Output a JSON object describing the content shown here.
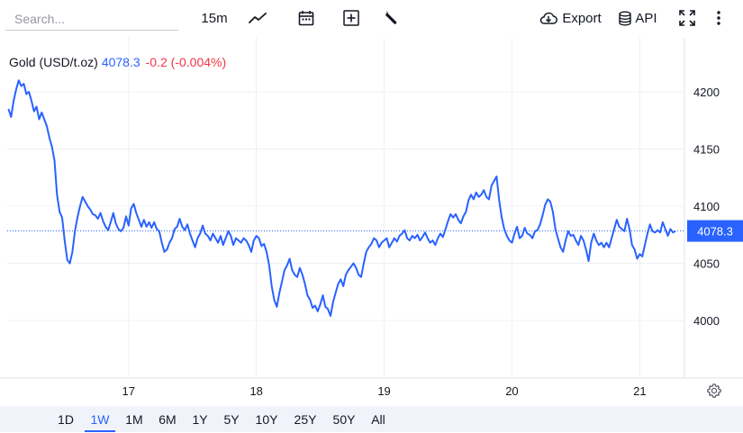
{
  "toolbar": {
    "search_placeholder": "Search...",
    "interval": "15m",
    "export_label": "Export",
    "api_label": "API"
  },
  "legend": {
    "symbol": "Gold (USD/t.oz)",
    "price": "4078.3",
    "change": "-0.2 (-0.004%)"
  },
  "price_label": "4078.3",
  "colors": {
    "line": "#2962ff",
    "down": "#f23645",
    "grid": "#e0e3eb",
    "range_bar": "#f0f3fa"
  },
  "ranges": [
    "1D",
    "1W",
    "1M",
    "6M",
    "1Y",
    "5Y",
    "10Y",
    "25Y",
    "50Y",
    "All"
  ],
  "active_range": "1W",
  "chart_data": {
    "type": "line",
    "series_name": "Gold (USD/t.oz)",
    "current_value": 4078.3,
    "y_ticks": [
      4000,
      4050,
      4100,
      4150,
      4200
    ],
    "y_range": [
      3950,
      4240
    ],
    "x_ticks": [
      {
        "label": "17",
        "x": 17
      },
      {
        "label": "18",
        "x": 18
      },
      {
        "label": "19",
        "x": 19
      },
      {
        "label": "20",
        "x": 20
      },
      {
        "label": "21",
        "x": 21
      }
    ],
    "x_range": [
      16.05,
      21.35
    ],
    "points": [
      [
        16.06,
        4185
      ],
      [
        16.08,
        4178
      ],
      [
        16.1,
        4192
      ],
      [
        16.12,
        4202
      ],
      [
        16.14,
        4210
      ],
      [
        16.16,
        4205
      ],
      [
        16.18,
        4207
      ],
      [
        16.2,
        4198
      ],
      [
        16.22,
        4200
      ],
      [
        16.24,
        4192
      ],
      [
        16.26,
        4183
      ],
      [
        16.28,
        4187
      ],
      [
        16.3,
        4176
      ],
      [
        16.32,
        4182
      ],
      [
        16.34,
        4176
      ],
      [
        16.36,
        4170
      ],
      [
        16.38,
        4160
      ],
      [
        16.4,
        4152
      ],
      [
        16.42,
        4140
      ],
      [
        16.44,
        4110
      ],
      [
        16.46,
        4095
      ],
      [
        16.48,
        4090
      ],
      [
        16.5,
        4070
      ],
      [
        16.52,
        4053
      ],
      [
        16.54,
        4050
      ],
      [
        16.56,
        4060
      ],
      [
        16.58,
        4078
      ],
      [
        16.6,
        4090
      ],
      [
        16.62,
        4100
      ],
      [
        16.64,
        4108
      ],
      [
        16.66,
        4104
      ],
      [
        16.68,
        4100
      ],
      [
        16.7,
        4097
      ],
      [
        16.72,
        4093
      ],
      [
        16.74,
        4092
      ],
      [
        16.76,
        4089
      ],
      [
        16.78,
        4094
      ],
      [
        16.8,
        4087
      ],
      [
        16.82,
        4082
      ],
      [
        16.84,
        4079
      ],
      [
        16.86,
        4086
      ],
      [
        16.88,
        4094
      ],
      [
        16.9,
        4085
      ],
      [
        16.92,
        4080
      ],
      [
        16.94,
        4078
      ],
      [
        16.96,
        4081
      ],
      [
        16.98,
        4091
      ],
      [
        17.0,
        4083
      ],
      [
        17.02,
        4098
      ],
      [
        17.04,
        4102
      ],
      [
        17.06,
        4094
      ],
      [
        17.08,
        4088
      ],
      [
        17.1,
        4082
      ],
      [
        17.12,
        4088
      ],
      [
        17.14,
        4082
      ],
      [
        17.16,
        4086
      ],
      [
        17.18,
        4081
      ],
      [
        17.2,
        4086
      ],
      [
        17.22,
        4080
      ],
      [
        17.24,
        4078
      ],
      [
        17.26,
        4068
      ],
      [
        17.28,
        4060
      ],
      [
        17.3,
        4062
      ],
      [
        17.32,
        4068
      ],
      [
        17.34,
        4072
      ],
      [
        17.36,
        4080
      ],
      [
        17.38,
        4082
      ],
      [
        17.4,
        4089
      ],
      [
        17.42,
        4082
      ],
      [
        17.44,
        4079
      ],
      [
        17.46,
        4084
      ],
      [
        17.48,
        4076
      ],
      [
        17.5,
        4070
      ],
      [
        17.52,
        4064
      ],
      [
        17.54,
        4072
      ],
      [
        17.56,
        4076
      ],
      [
        17.58,
        4083
      ],
      [
        17.6,
        4076
      ],
      [
        17.62,
        4074
      ],
      [
        17.64,
        4070
      ],
      [
        17.66,
        4076
      ],
      [
        17.68,
        4072
      ],
      [
        17.7,
        4068
      ],
      [
        17.72,
        4074
      ],
      [
        17.74,
        4066
      ],
      [
        17.76,
        4072
      ],
      [
        17.78,
        4078
      ],
      [
        17.8,
        4074
      ],
      [
        17.82,
        4066
      ],
      [
        17.84,
        4072
      ],
      [
        17.86,
        4070
      ],
      [
        17.88,
        4068
      ],
      [
        17.9,
        4072
      ],
      [
        17.92,
        4070
      ],
      [
        17.94,
        4066
      ],
      [
        17.96,
        4060
      ],
      [
        17.98,
        4070
      ],
      [
        18.0,
        4074
      ],
      [
        18.02,
        4072
      ],
      [
        18.04,
        4065
      ],
      [
        18.06,
        4067
      ],
      [
        18.08,
        4060
      ],
      [
        18.1,
        4048
      ],
      [
        18.12,
        4030
      ],
      [
        18.14,
        4018
      ],
      [
        18.16,
        4012
      ],
      [
        18.18,
        4024
      ],
      [
        18.2,
        4034
      ],
      [
        18.22,
        4044
      ],
      [
        18.24,
        4048
      ],
      [
        18.26,
        4054
      ],
      [
        18.28,
        4044
      ],
      [
        18.3,
        4040
      ],
      [
        18.32,
        4038
      ],
      [
        18.34,
        4046
      ],
      [
        18.36,
        4040
      ],
      [
        18.38,
        4032
      ],
      [
        18.4,
        4022
      ],
      [
        18.42,
        4018
      ],
      [
        18.44,
        4011
      ],
      [
        18.46,
        4013
      ],
      [
        18.48,
        4008
      ],
      [
        18.5,
        4014
      ],
      [
        18.52,
        4022
      ],
      [
        18.54,
        4012
      ],
      [
        18.56,
        4010
      ],
      [
        18.58,
        4004
      ],
      [
        18.6,
        4016
      ],
      [
        18.62,
        4024
      ],
      [
        18.64,
        4032
      ],
      [
        18.66,
        4036
      ],
      [
        18.68,
        4030
      ],
      [
        18.7,
        4040
      ],
      [
        18.72,
        4044
      ],
      [
        18.74,
        4047
      ],
      [
        18.76,
        4050
      ],
      [
        18.78,
        4046
      ],
      [
        18.8,
        4040
      ],
      [
        18.82,
        4038
      ],
      [
        18.84,
        4050
      ],
      [
        18.86,
        4060
      ],
      [
        18.88,
        4064
      ],
      [
        18.9,
        4067
      ],
      [
        18.92,
        4072
      ],
      [
        18.94,
        4070
      ],
      [
        18.96,
        4064
      ],
      [
        18.98,
        4068
      ],
      [
        19.0,
        4070
      ],
      [
        19.02,
        4072
      ],
      [
        19.04,
        4064
      ],
      [
        19.06,
        4068
      ],
      [
        19.08,
        4072
      ],
      [
        19.1,
        4069
      ],
      [
        19.12,
        4074
      ],
      [
        19.14,
        4076
      ],
      [
        19.16,
        4079
      ],
      [
        19.18,
        4072
      ],
      [
        19.2,
        4070
      ],
      [
        19.22,
        4074
      ],
      [
        19.24,
        4072
      ],
      [
        19.26,
        4075
      ],
      [
        19.28,
        4070
      ],
      [
        19.3,
        4073
      ],
      [
        19.32,
        4077
      ],
      [
        19.34,
        4072
      ],
      [
        19.36,
        4068
      ],
      [
        19.38,
        4070
      ],
      [
        19.4,
        4066
      ],
      [
        19.42,
        4072
      ],
      [
        19.44,
        4076
      ],
      [
        19.46,
        4073
      ],
      [
        19.48,
        4080
      ],
      [
        19.5,
        4087
      ],
      [
        19.52,
        4093
      ],
      [
        19.54,
        4090
      ],
      [
        19.56,
        4093
      ],
      [
        19.58,
        4088
      ],
      [
        19.6,
        4085
      ],
      [
        19.62,
        4091
      ],
      [
        19.64,
        4095
      ],
      [
        19.66,
        4105
      ],
      [
        19.68,
        4110
      ],
      [
        19.7,
        4106
      ],
      [
        19.72,
        4112
      ],
      [
        19.74,
        4108
      ],
      [
        19.76,
        4110
      ],
      [
        19.78,
        4114
      ],
      [
        19.8,
        4108
      ],
      [
        19.82,
        4106
      ],
      [
        19.84,
        4118
      ],
      [
        19.86,
        4122
      ],
      [
        19.88,
        4126
      ],
      [
        19.9,
        4105
      ],
      [
        19.92,
        4090
      ],
      [
        19.94,
        4080
      ],
      [
        19.96,
        4074
      ],
      [
        19.98,
        4070
      ],
      [
        20.0,
        4068
      ],
      [
        20.02,
        4076
      ],
      [
        20.04,
        4082
      ],
      [
        20.06,
        4072
      ],
      [
        20.08,
        4074
      ],
      [
        20.1,
        4081
      ],
      [
        20.12,
        4076
      ],
      [
        20.14,
        4075
      ],
      [
        20.16,
        4072
      ],
      [
        20.18,
        4078
      ],
      [
        20.2,
        4079
      ],
      [
        20.22,
        4084
      ],
      [
        20.24,
        4092
      ],
      [
        20.26,
        4101
      ],
      [
        20.28,
        4106
      ],
      [
        20.3,
        4104
      ],
      [
        20.32,
        4095
      ],
      [
        20.34,
        4080
      ],
      [
        20.36,
        4072
      ],
      [
        20.38,
        4064
      ],
      [
        20.4,
        4060
      ],
      [
        20.42,
        4070
      ],
      [
        20.44,
        4078
      ],
      [
        20.46,
        4074
      ],
      [
        20.48,
        4075
      ],
      [
        20.5,
        4070
      ],
      [
        20.52,
        4066
      ],
      [
        20.54,
        4074
      ],
      [
        20.56,
        4070
      ],
      [
        20.58,
        4062
      ],
      [
        20.6,
        4052
      ],
      [
        20.62,
        4068
      ],
      [
        20.64,
        4076
      ],
      [
        20.66,
        4070
      ],
      [
        20.68,
        4066
      ],
      [
        20.7,
        4068
      ],
      [
        20.72,
        4064
      ],
      [
        20.74,
        4068
      ],
      [
        20.76,
        4064
      ],
      [
        20.78,
        4072
      ],
      [
        20.8,
        4080
      ],
      [
        20.82,
        4088
      ],
      [
        20.84,
        4082
      ],
      [
        20.86,
        4080
      ],
      [
        20.88,
        4078
      ],
      [
        20.9,
        4089
      ],
      [
        20.92,
        4080
      ],
      [
        20.94,
        4066
      ],
      [
        20.96,
        4062
      ],
      [
        20.98,
        4054
      ],
      [
        21.0,
        4058
      ],
      [
        21.02,
        4056
      ],
      [
        21.04,
        4066
      ],
      [
        21.06,
        4076
      ],
      [
        21.08,
        4084
      ],
      [
        21.1,
        4078
      ],
      [
        21.12,
        4077
      ],
      [
        21.14,
        4079
      ],
      [
        21.16,
        4077
      ],
      [
        21.18,
        4086
      ],
      [
        21.2,
        4080
      ],
      [
        21.22,
        4074
      ],
      [
        21.24,
        4080
      ],
      [
        21.26,
        4077
      ],
      [
        21.28,
        4078.3
      ]
    ]
  }
}
